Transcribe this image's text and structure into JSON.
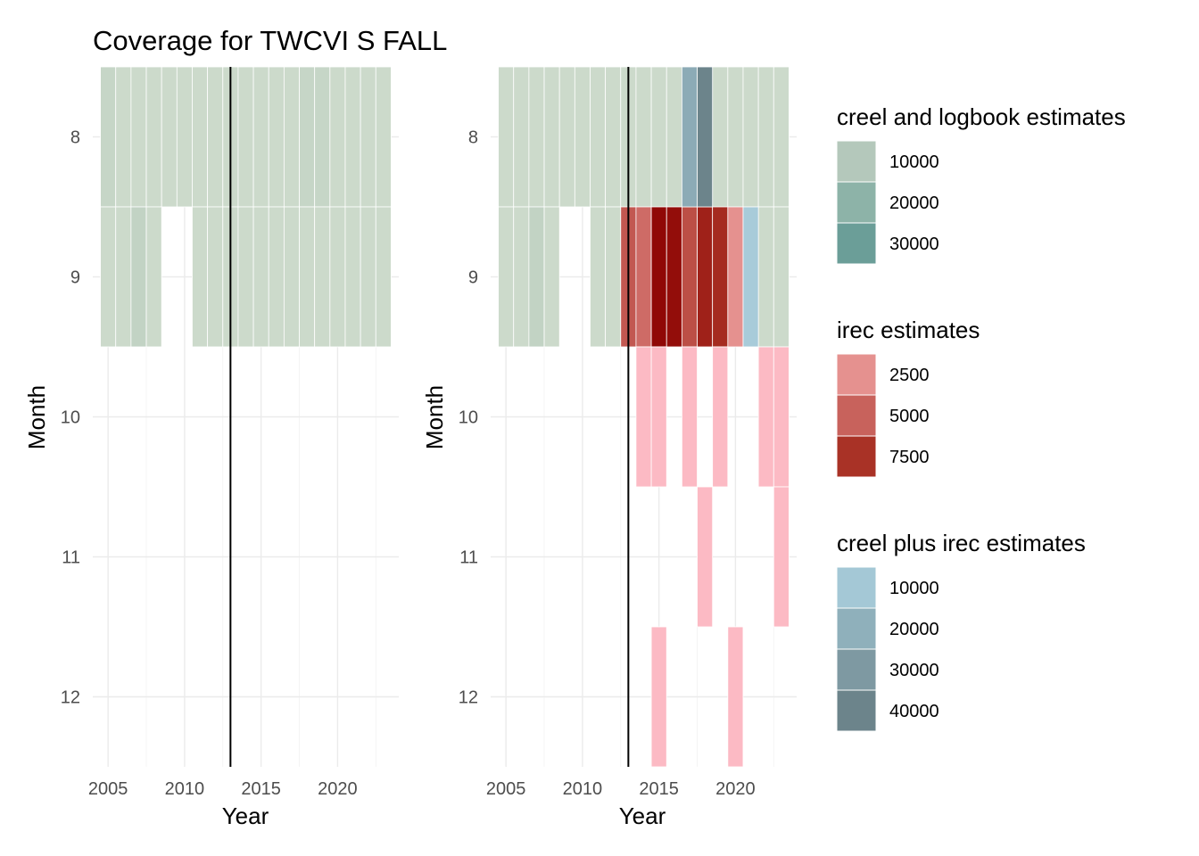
{
  "chart_data": {
    "type": "heatmap",
    "title": "Coverage for TWCVI S FALL",
    "xlabel": "Year",
    "ylabel": "Month",
    "xlim": [
      2004,
      2024
    ],
    "ylim": [
      7.5,
      12.5
    ],
    "x_ticks": [
      2005,
      2010,
      2015,
      2020
    ],
    "y_ticks": [
      8,
      9,
      10,
      11,
      12
    ],
    "reference_line_x": 2013,
    "grid": true,
    "legend_position": "right",
    "panels": [
      {
        "id": "left",
        "layers": [
          {
            "name": "creel and logbook estimates",
            "cells": [
              {
                "year": 2005,
                "month": 8,
                "value": 5500
              },
              {
                "year": 2006,
                "month": 8,
                "value": 4000
              },
              {
                "year": 2007,
                "month": 8,
                "value": 4000
              },
              {
                "year": 2008,
                "month": 8,
                "value": 4000
              },
              {
                "year": 2009,
                "month": 8,
                "value": 4000
              },
              {
                "year": 2010,
                "month": 8,
                "value": 4000
              },
              {
                "year": 2011,
                "month": 8,
                "value": 4000
              },
              {
                "year": 2012,
                "month": 8,
                "value": 4000
              },
              {
                "year": 2013,
                "month": 8,
                "value": 4000
              },
              {
                "year": 2014,
                "month": 8,
                "value": 4000
              },
              {
                "year": 2015,
                "month": 8,
                "value": 4000
              },
              {
                "year": 2016,
                "month": 8,
                "value": 4000
              },
              {
                "year": 2017,
                "month": 8,
                "value": 4000
              },
              {
                "year": 2018,
                "month": 8,
                "value": 5500
              },
              {
                "year": 2019,
                "month": 8,
                "value": 5500
              },
              {
                "year": 2020,
                "month": 8,
                "value": 4000
              },
              {
                "year": 2021,
                "month": 8,
                "value": 4000
              },
              {
                "year": 2022,
                "month": 8,
                "value": 4000
              },
              {
                "year": 2023,
                "month": 8,
                "value": 4000
              },
              {
                "year": 2005,
                "month": 9,
                "value": 4000
              },
              {
                "year": 2006,
                "month": 9,
                "value": 4000
              },
              {
                "year": 2007,
                "month": 9,
                "value": 6500
              },
              {
                "year": 2008,
                "month": 9,
                "value": 4000
              },
              {
                "year": 2011,
                "month": 9,
                "value": 4000
              },
              {
                "year": 2012,
                "month": 9,
                "value": 4000
              },
              {
                "year": 2013,
                "month": 9,
                "value": 4000
              },
              {
                "year": 2014,
                "month": 9,
                "value": 4000
              },
              {
                "year": 2015,
                "month": 9,
                "value": 4000
              },
              {
                "year": 2016,
                "month": 9,
                "value": 4000
              },
              {
                "year": 2017,
                "month": 9,
                "value": 4000
              },
              {
                "year": 2018,
                "month": 9,
                "value": 4000
              },
              {
                "year": 2019,
                "month": 9,
                "value": 4000
              },
              {
                "year": 2020,
                "month": 9,
                "value": 4000
              },
              {
                "year": 2021,
                "month": 9,
                "value": 4000
              },
              {
                "year": 2022,
                "month": 9,
                "value": 4000
              },
              {
                "year": 2023,
                "month": 9,
                "value": 4000
              }
            ]
          }
        ]
      },
      {
        "id": "right",
        "layers": [
          {
            "name": "creel and logbook estimates",
            "cells": [
              {
                "year": 2005,
                "month": 8,
                "value": 4000
              },
              {
                "year": 2006,
                "month": 8,
                "value": 4000
              },
              {
                "year": 2007,
                "month": 8,
                "value": 4000
              },
              {
                "year": 2008,
                "month": 8,
                "value": 4000
              },
              {
                "year": 2009,
                "month": 8,
                "value": 4000
              },
              {
                "year": 2010,
                "month": 8,
                "value": 4000
              },
              {
                "year": 2011,
                "month": 8,
                "value": 4000
              },
              {
                "year": 2012,
                "month": 8,
                "value": 4000
              },
              {
                "year": 2013,
                "month": 8,
                "value": 4000
              },
              {
                "year": 2014,
                "month": 8,
                "value": 4000
              },
              {
                "year": 2015,
                "month": 8,
                "value": 4000
              },
              {
                "year": 2016,
                "month": 8,
                "value": 4000
              },
              {
                "year": 2019,
                "month": 8,
                "value": 4000
              },
              {
                "year": 2020,
                "month": 8,
                "value": 4000
              },
              {
                "year": 2021,
                "month": 8,
                "value": 4000
              },
              {
                "year": 2022,
                "month": 8,
                "value": 4000
              },
              {
                "year": 2023,
                "month": 8,
                "value": 4000
              },
              {
                "year": 2005,
                "month": 9,
                "value": 4000
              },
              {
                "year": 2006,
                "month": 9,
                "value": 4000
              },
              {
                "year": 2007,
                "month": 9,
                "value": 6500
              },
              {
                "year": 2008,
                "month": 9,
                "value": 4000
              },
              {
                "year": 2011,
                "month": 9,
                "value": 4000
              },
              {
                "year": 2012,
                "month": 9,
                "value": 4000
              },
              {
                "year": 2022,
                "month": 9,
                "value": 4000
              },
              {
                "year": 2023,
                "month": 9,
                "value": 4000
              }
            ]
          },
          {
            "name": "irec estimates",
            "cells": [
              {
                "year": 2013,
                "month": 9,
                "value": 5500
              },
              {
                "year": 2014,
                "month": 9,
                "value": 4500
              },
              {
                "year": 2015,
                "month": 9,
                "value": 9200
              },
              {
                "year": 2016,
                "month": 9,
                "value": 9000
              },
              {
                "year": 2017,
                "month": 9,
                "value": 6000
              },
              {
                "year": 2018,
                "month": 9,
                "value": 8200
              },
              {
                "year": 2019,
                "month": 9,
                "value": 7800
              },
              {
                "year": 2020,
                "month": 9,
                "value": 2500
              },
              {
                "year": 2014,
                "month": 10,
                "value": 300
              },
              {
                "year": 2015,
                "month": 10,
                "value": 300
              },
              {
                "year": 2017,
                "month": 10,
                "value": 300
              },
              {
                "year": 2019,
                "month": 10,
                "value": 300
              },
              {
                "year": 2022,
                "month": 10,
                "value": 300
              },
              {
                "year": 2023,
                "month": 10,
                "value": 300
              },
              {
                "year": 2018,
                "month": 11,
                "value": 300
              },
              {
                "year": 2023,
                "month": 11,
                "value": 300
              },
              {
                "year": 2015,
                "month": 12,
                "value": 300
              },
              {
                "year": 2020,
                "month": 12,
                "value": 300
              }
            ]
          },
          {
            "name": "creel plus irec estimates",
            "cells": [
              {
                "year": 2017,
                "month": 8,
                "value": 22000
              },
              {
                "year": 2018,
                "month": 8,
                "value": 42000
              },
              {
                "year": 2021,
                "month": 9,
                "value": 8000
              }
            ]
          }
        ]
      }
    ],
    "legends": [
      {
        "title": "creel and logbook estimates",
        "entries": [
          {
            "label": "10000",
            "value": 10000,
            "color": "#b4c8bb"
          },
          {
            "label": "20000",
            "value": 20000,
            "color": "#8db3a8"
          },
          {
            "label": "30000",
            "value": 30000,
            "color": "#6b9e98"
          }
        ]
      },
      {
        "title": "irec estimates",
        "entries": [
          {
            "label": "2500",
            "value": 2500,
            "color": "#e5918f"
          },
          {
            "label": "5000",
            "value": 5000,
            "color": "#c8625c"
          },
          {
            "label": "7500",
            "value": 7500,
            "color": "#a93226"
          }
        ]
      },
      {
        "title": "creel plus irec estimates",
        "entries": [
          {
            "label": "10000",
            "value": 10000,
            "color": "#a4c8d6"
          },
          {
            "label": "20000",
            "value": 20000,
            "color": "#8fb0bb"
          },
          {
            "label": "30000",
            "value": 30000,
            "color": "#7e99a2"
          },
          {
            "label": "40000",
            "value": 40000,
            "color": "#6c848b"
          }
        ]
      }
    ],
    "scales": {
      "creel and logbook estimates": [
        {
          "value": 0,
          "color": "#dce6d6"
        },
        {
          "value": 10000,
          "color": "#b4c8bb"
        },
        {
          "value": 20000,
          "color": "#8db3a8"
        },
        {
          "value": 30000,
          "color": "#6b9e98"
        }
      ],
      "irec estimates": [
        {
          "value": 0,
          "color": "#ffc0cb"
        },
        {
          "value": 2500,
          "color": "#e5918f"
        },
        {
          "value": 5000,
          "color": "#c8625c"
        },
        {
          "value": 7500,
          "color": "#a93226"
        },
        {
          "value": 9500,
          "color": "#8b0000"
        }
      ],
      "creel plus irec estimates": [
        {
          "value": 0,
          "color": "#b8d8e6"
        },
        {
          "value": 10000,
          "color": "#a4c8d6"
        },
        {
          "value": 20000,
          "color": "#8fb0bb"
        },
        {
          "value": 30000,
          "color": "#7e99a2"
        },
        {
          "value": 40000,
          "color": "#6c848b"
        }
      ]
    }
  }
}
